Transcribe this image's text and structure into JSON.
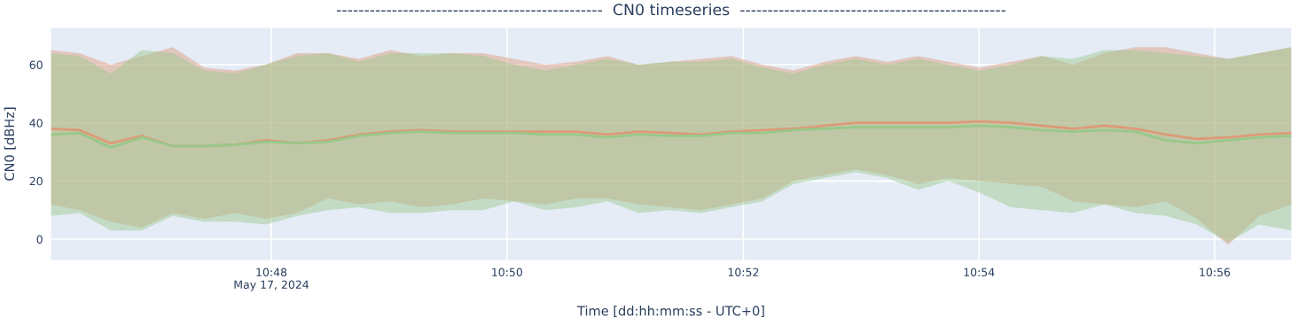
{
  "chart_data": {
    "type": "line",
    "title": "------------------------------------------------  CN0 timeseries  ------------------------------------------------",
    "xlabel": "Time [dd:hh:mm:ss - UTC+0]",
    "ylabel": "CN0 [dBHz]",
    "x": [
      10.7688,
      10.7729,
      10.7773,
      10.7817,
      10.7861,
      10.7905,
      10.7949,
      10.7992,
      10.8036,
      10.808,
      10.8124,
      10.8168,
      10.8212,
      10.8256,
      10.83,
      10.8343,
      10.8387,
      10.8431,
      10.8475,
      10.8519,
      10.8563,
      10.8607,
      10.865,
      10.8694,
      10.8738,
      10.8782,
      10.8826,
      10.887,
      10.8914,
      10.8957,
      10.9001,
      10.9045,
      10.9089,
      10.9133,
      10.9177,
      10.9221,
      10.9264,
      10.9308,
      10.9352,
      10.9396,
      10.9442
    ],
    "series": [
      {
        "color": "#dc9a78",
        "values": [
          38,
          37.5,
          33,
          35.5,
          32,
          32,
          32.5,
          34,
          33,
          34,
          36,
          37,
          37.5,
          37,
          37,
          37,
          37,
          37,
          36,
          37,
          36.5,
          36,
          37,
          37.5,
          38,
          39,
          40,
          40,
          40,
          40,
          40.5,
          40,
          39,
          38,
          39,
          38,
          36,
          34.5,
          35,
          36,
          36.5
        ],
        "lower": [
          12,
          10,
          6,
          4,
          9,
          7,
          9,
          7,
          9,
          14,
          12,
          13,
          11,
          12,
          14,
          13,
          12,
          14,
          14,
          12,
          11,
          10,
          12,
          14,
          20,
          22,
          24,
          22,
          19,
          21,
          20,
          19,
          18,
          13,
          12,
          11,
          13,
          7,
          -2,
          8,
          12
        ],
        "upper": [
          65,
          64,
          60,
          63,
          66,
          59,
          58,
          60,
          64,
          64,
          62,
          65,
          63,
          64,
          64,
          62,
          60,
          61,
          63,
          60,
          61,
          62,
          63,
          60,
          58,
          61,
          63,
          61,
          63,
          61,
          59,
          61,
          63,
          60,
          64,
          66,
          66,
          64,
          62,
          64,
          66
        ]
      },
      {
        "color": "#98c88a",
        "values": [
          36,
          36.5,
          31.5,
          35,
          32,
          32,
          32.5,
          33.5,
          33,
          33.5,
          35.5,
          36.5,
          37,
          36.5,
          36.5,
          36.5,
          36,
          36,
          35,
          36,
          35.5,
          35.5,
          36.5,
          36.5,
          37.5,
          38,
          38.5,
          38.5,
          38.5,
          38.5,
          39,
          38.5,
          37.5,
          37,
          37.5,
          37,
          34,
          33,
          34,
          35,
          35.5
        ],
        "lower": [
          8,
          9,
          3,
          3,
          8,
          6,
          6,
          5,
          8,
          10,
          11,
          9,
          9,
          10,
          10,
          13,
          10,
          11,
          13,
          9,
          10,
          9,
          11,
          13,
          19,
          21,
          23,
          21,
          17,
          20,
          16,
          11,
          10,
          9,
          12,
          9,
          8,
          5,
          -1,
          5,
          3
        ],
        "upper": [
          64,
          63,
          57,
          65,
          64,
          58,
          57,
          60,
          63,
          64,
          61,
          64,
          64,
          64,
          63,
          60,
          58,
          60,
          62,
          60,
          61,
          61,
          62,
          59,
          57,
          60,
          62,
          60,
          62,
          60,
          58,
          60,
          63,
          62,
          65,
          65,
          64,
          63,
          62,
          64,
          66
        ]
      }
    ],
    "xlim": [
      10.7688,
      10.9442
    ],
    "xticks": [
      {
        "value": 10.8,
        "label": "10:48\nMay 17, 2024"
      },
      {
        "value": 10.8333,
        "label": "10:50"
      },
      {
        "value": 10.8667,
        "label": "10:52"
      },
      {
        "value": 10.9,
        "label": "10:54"
      },
      {
        "value": 10.9333,
        "label": "10:56"
      }
    ],
    "ylim": [
      -7.3,
      72.8
    ],
    "yticks": [
      0,
      20,
      40,
      60
    ],
    "grid": true
  }
}
